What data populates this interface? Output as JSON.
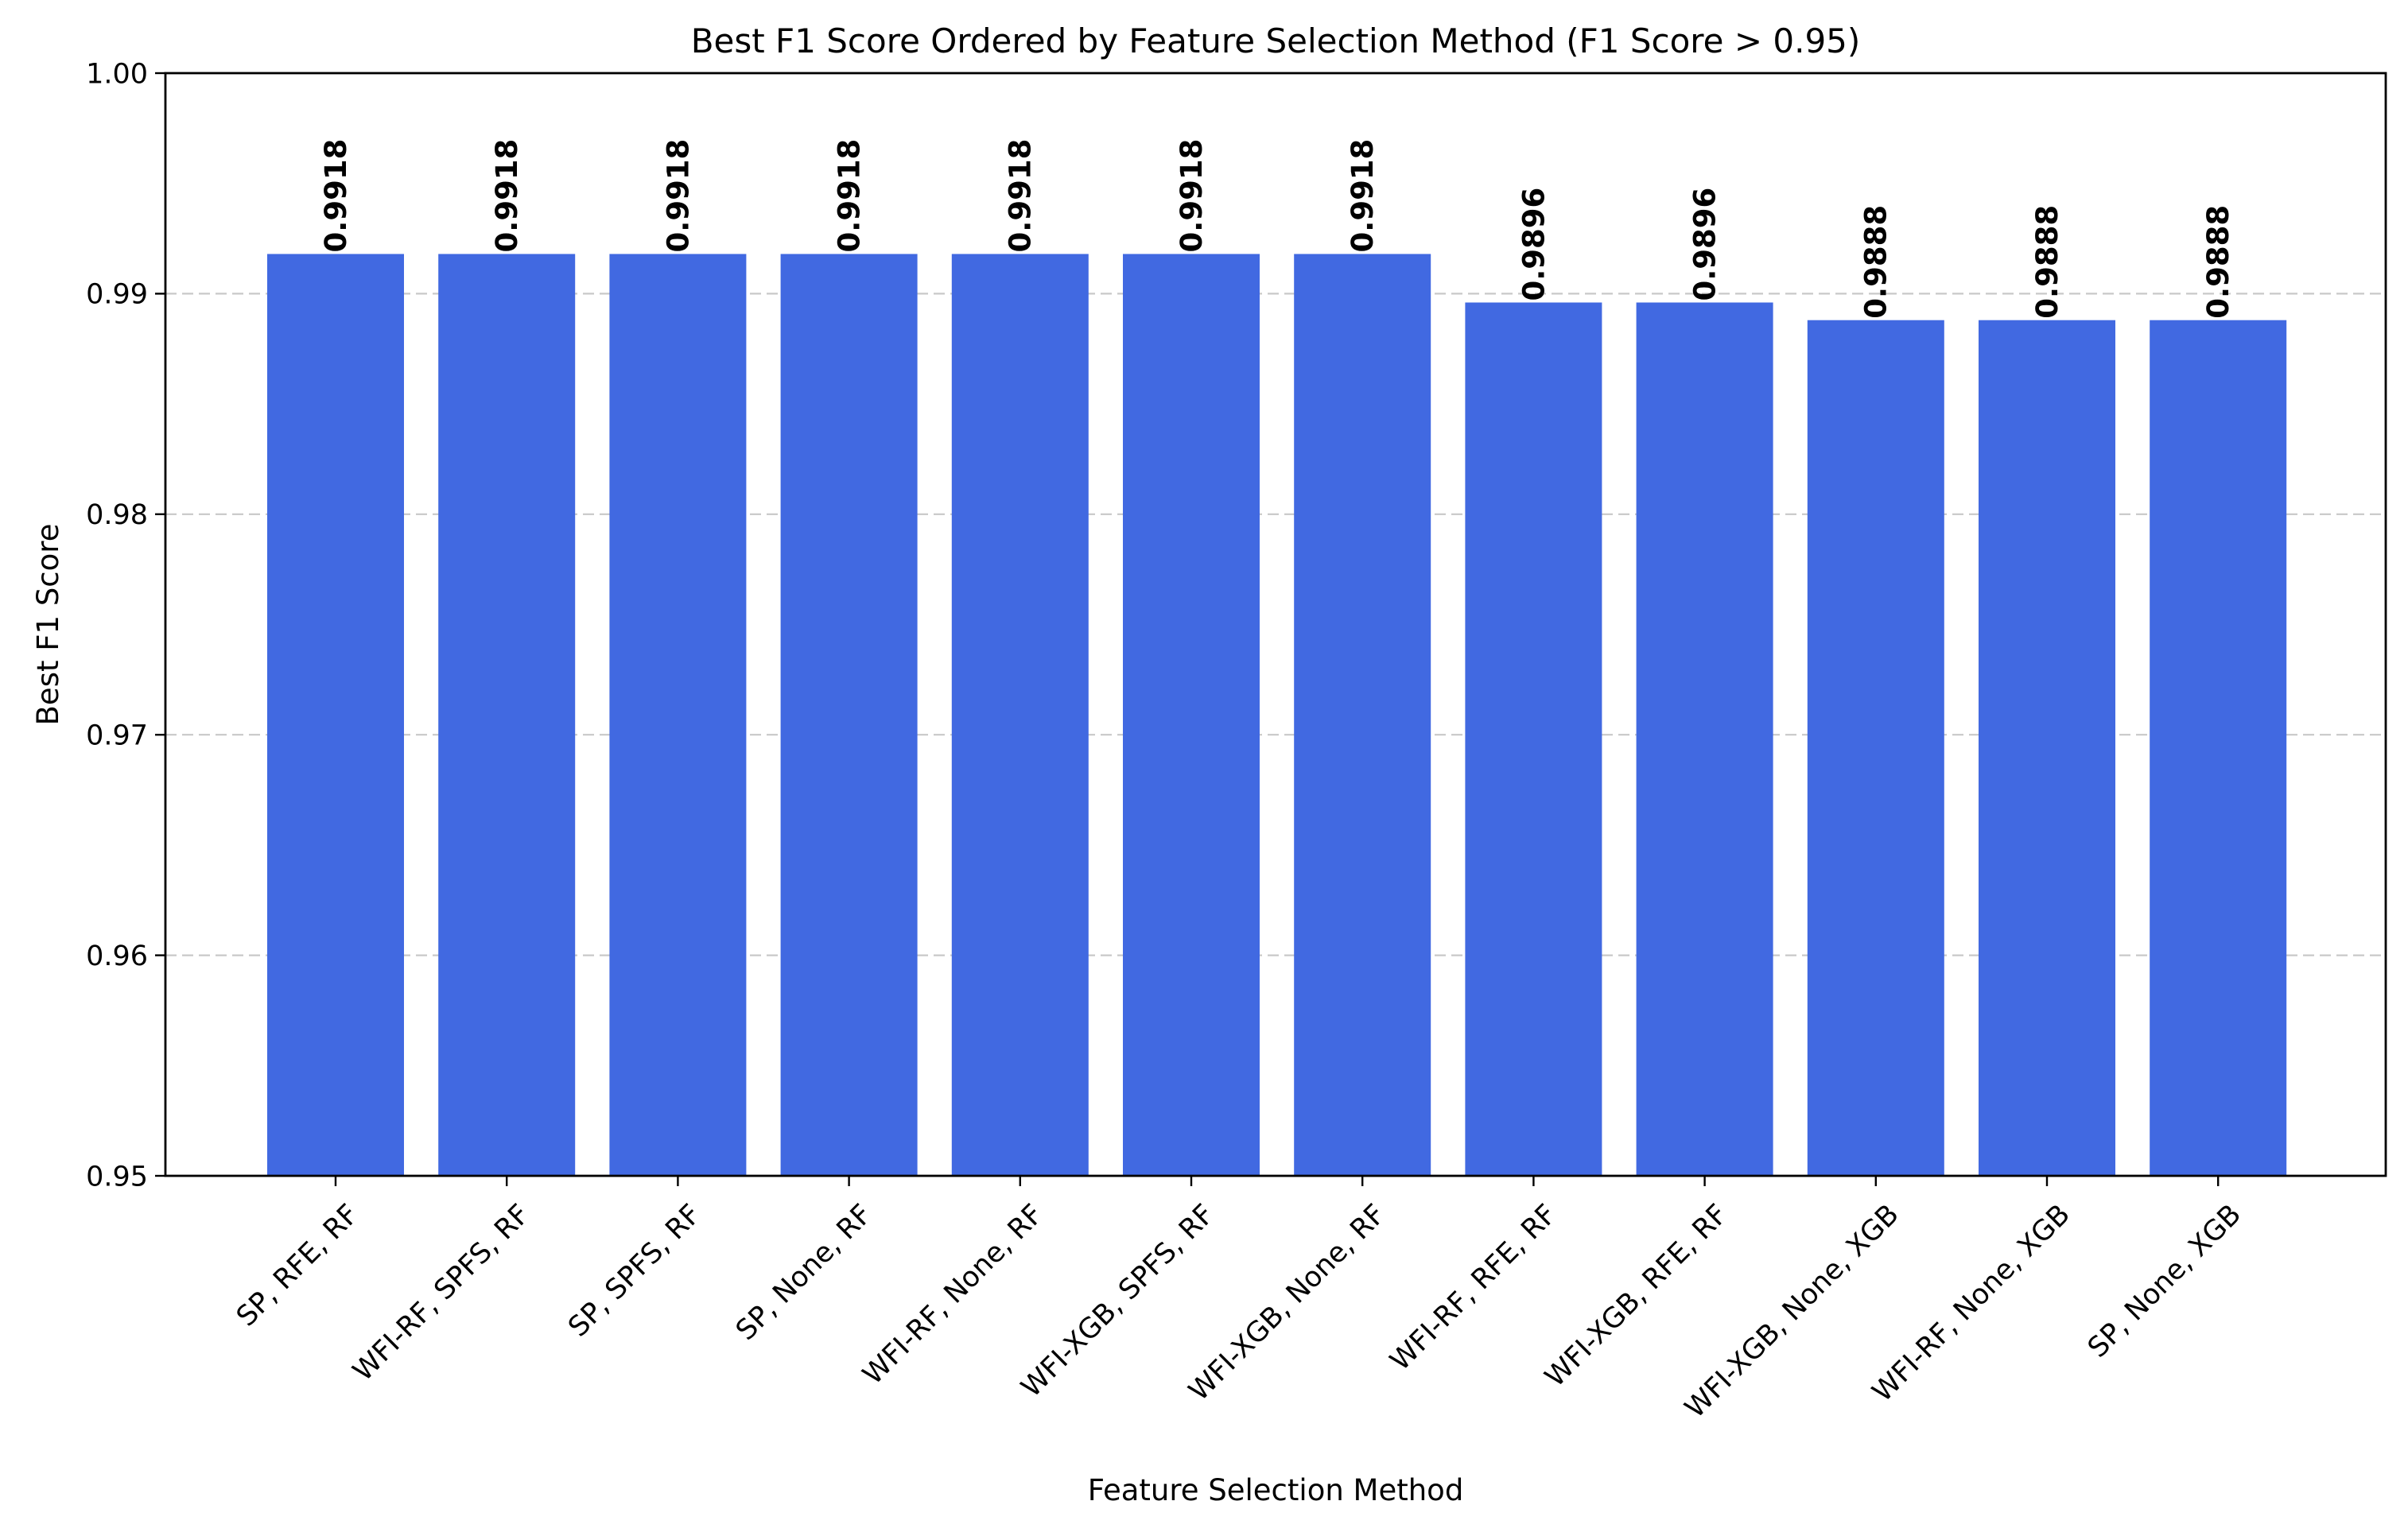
{
  "chart_data": {
    "type": "bar",
    "title": "Best F1 Score Ordered by Feature Selection Method (F1 Score > 0.95)",
    "xlabel": "Feature Selection Method",
    "ylabel": "Best F1 Score",
    "ylim": [
      0.95,
      1.0
    ],
    "yticks": [
      "0.95",
      "0.96",
      "0.97",
      "0.98",
      "0.99",
      "1.00"
    ],
    "grid": "y-dashed",
    "bar_color": "#4169e1",
    "categories": [
      "SP, RFE, RF",
      "WFI-RF, SPFS, RF",
      "SP, SPFS, RF",
      "SP, None, RF",
      "WFI-RF, None, RF",
      "WFI-XGB, SPFS, RF",
      "WFI-XGB, None, RF",
      "WFI-RF, RFE, RF",
      "WFI-XGB, RFE, RF",
      "WFI-XGB, None, XGB",
      "WFI-RF, None, XGB",
      "SP, None, XGB"
    ],
    "values": [
      0.9918,
      0.9918,
      0.9918,
      0.9918,
      0.9918,
      0.9918,
      0.9918,
      0.9896,
      0.9896,
      0.9888,
      0.9888,
      0.9888
    ],
    "value_labels": [
      "0.9918",
      "0.9918",
      "0.9918",
      "0.9918",
      "0.9918",
      "0.9918",
      "0.9918",
      "0.9896",
      "0.9896",
      "0.9888",
      "0.9888",
      "0.9888"
    ]
  }
}
